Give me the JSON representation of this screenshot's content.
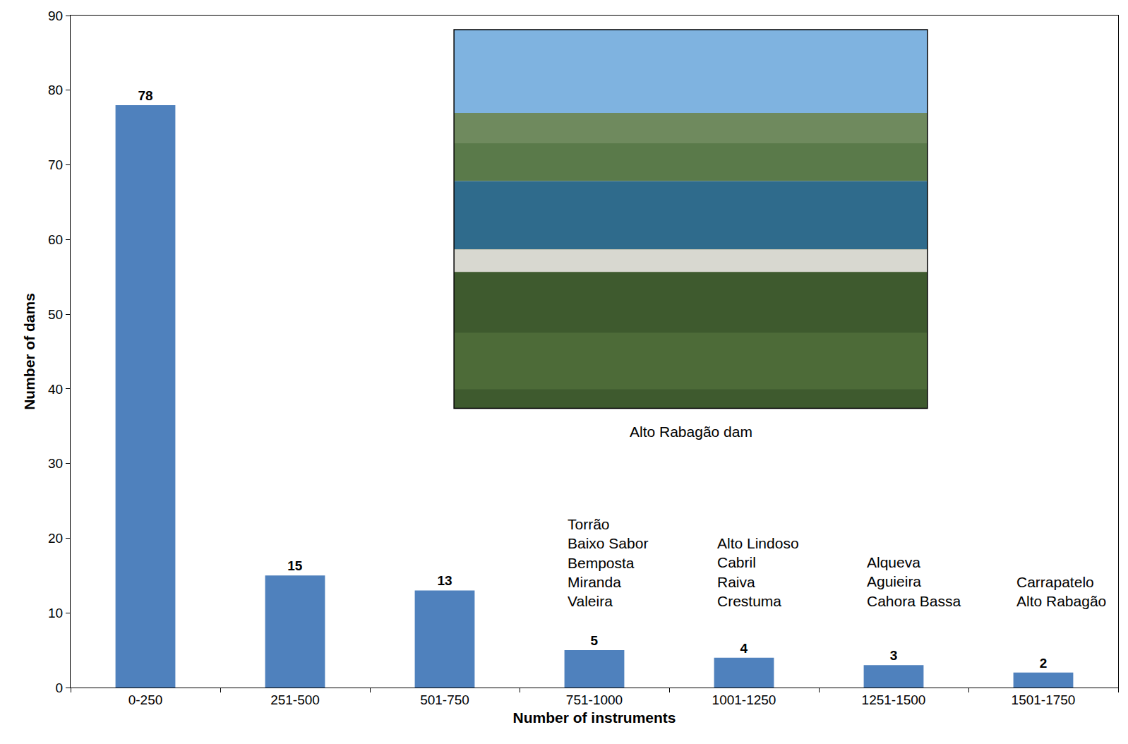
{
  "chart_data": {
    "type": "bar",
    "xlabel": "Number of instruments",
    "ylabel": "Number of dams",
    "categories": [
      "0-250",
      "251-500",
      "501-750",
      "751-1000",
      "1001-1250",
      "1251-1500",
      "1501-1750"
    ],
    "values": [
      78,
      15,
      13,
      5,
      4,
      3,
      2
    ],
    "color": "#4f81bd",
    "ylim": [
      0,
      90
    ],
    "yticks": [
      0,
      10,
      20,
      30,
      40,
      50,
      60,
      70,
      80,
      90
    ],
    "grid": false,
    "data_labels": true,
    "annotations": [
      {
        "category": "751-1000",
        "lines": [
          "Torrão",
          "Baixo Sabor",
          "Bemposta",
          "Miranda",
          "Valeira"
        ]
      },
      {
        "category": "1001-1250",
        "lines": [
          "Alto Lindoso",
          "Cabril",
          "Raiva",
          "Crestuma"
        ]
      },
      {
        "category": "1251-1500",
        "lines": [
          "Alqueva",
          "Aguieira",
          "Cahora Bassa"
        ]
      },
      {
        "category": "1501-1750",
        "lines": [
          "Carrapatelo",
          "Alto Rabagão"
        ]
      }
    ],
    "image_caption": "Alto Rabagão dam"
  }
}
